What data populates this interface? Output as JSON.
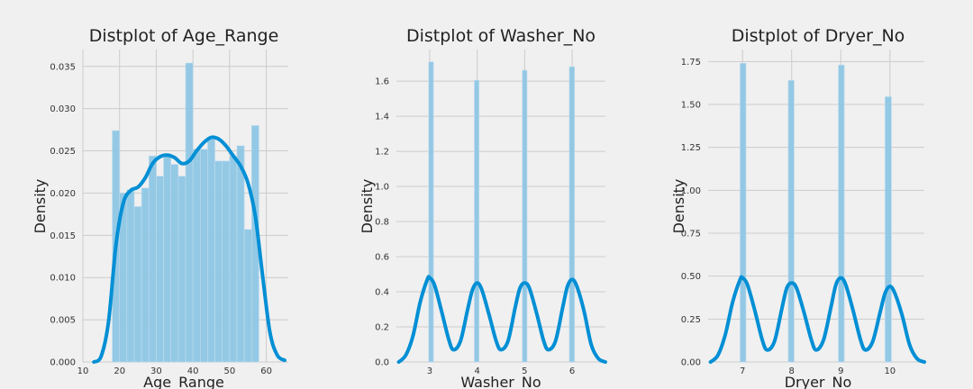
{
  "chart_data": [
    {
      "type": "histogram-kde",
      "title": "Distplot of Age_Range",
      "xlabel": "Age_Range",
      "ylabel": "Density",
      "xlim": [
        10,
        66
      ],
      "ylim": [
        0,
        0.037
      ],
      "xticks": [
        "10",
        "20",
        "30",
        "40",
        "50",
        "60"
      ],
      "yticks": [
        "0.000",
        "0.005",
        "0.010",
        "0.015",
        "0.020",
        "0.025",
        "0.030",
        "0.035"
      ],
      "grid": true,
      "bins": {
        "x0": [
          18,
          20,
          22,
          24,
          26,
          28,
          30,
          32,
          34,
          36,
          38,
          40,
          42,
          44,
          46,
          48,
          50,
          52,
          54,
          56,
          58
        ],
        "x1": [
          20,
          22,
          24,
          26,
          28,
          30,
          32,
          34,
          36,
          38,
          40,
          42,
          44,
          46,
          48,
          50,
          52,
          54,
          56,
          58,
          60
        ],
        "density": [
          0.0274,
          0.02,
          0.0204,
          0.0184,
          0.0206,
          0.0244,
          0.022,
          0.0244,
          0.0234,
          0.022,
          0.0354,
          0.0252,
          0.0252,
          0.0264,
          0.0238,
          0.0238,
          0.0244,
          0.0256,
          0.0157,
          0.028,
          0
        ]
      },
      "kde": {
        "x": [
          13,
          15,
          17,
          19,
          21,
          23,
          25,
          27,
          29,
          31,
          33,
          35,
          37,
          39,
          41,
          43,
          45,
          47,
          49,
          51,
          53,
          55,
          57,
          59,
          61,
          63,
          65
        ],
        "y": [
          0.0,
          0.0007,
          0.0048,
          0.0138,
          0.0188,
          0.0203,
          0.0207,
          0.0218,
          0.0235,
          0.0243,
          0.0245,
          0.0242,
          0.0235,
          0.0238,
          0.025,
          0.026,
          0.0266,
          0.0264,
          0.0256,
          0.0244,
          0.0232,
          0.0212,
          0.0173,
          0.0102,
          0.0035,
          0.0008,
          0.0002
        ]
      },
      "colors": {
        "bar": "#8ec6e4",
        "kde": "#008fd5"
      }
    },
    {
      "type": "histogram-kde",
      "title": "Distplot of Washer_No",
      "xlabel": "Washer_No",
      "ylabel": "Density",
      "xlim": [
        2.3,
        6.7
      ],
      "ylim": [
        0,
        1.78
      ],
      "xticks": [
        "3",
        "4",
        "5",
        "6"
      ],
      "yticks": [
        "0.0",
        "0.2",
        "0.4",
        "0.6",
        "0.8",
        "1.0",
        "1.2",
        "1.4",
        "1.6"
      ],
      "grid": true,
      "bins": {
        "x0": [
          2.98,
          3.94,
          4.95,
          5.94
        ],
        "x1": [
          3.08,
          4.04,
          5.05,
          6.05
        ],
        "density": [
          1.71,
          1.605,
          1.662,
          1.682
        ]
      },
      "kde": {
        "x": [
          2.35,
          2.5,
          2.65,
          2.8,
          2.95,
          3.0,
          3.1,
          3.25,
          3.4,
          3.5,
          3.65,
          3.8,
          3.9,
          4.0,
          4.1,
          4.25,
          4.4,
          4.5,
          4.65,
          4.8,
          4.9,
          5.0,
          5.1,
          5.25,
          5.4,
          5.5,
          5.65,
          5.8,
          5.9,
          6.0,
          6.1,
          6.25,
          6.4,
          6.55,
          6.7
        ],
        "y": [
          0.0,
          0.04,
          0.15,
          0.34,
          0.47,
          0.48,
          0.44,
          0.29,
          0.13,
          0.07,
          0.12,
          0.3,
          0.41,
          0.45,
          0.41,
          0.27,
          0.12,
          0.07,
          0.12,
          0.31,
          0.42,
          0.45,
          0.42,
          0.28,
          0.12,
          0.07,
          0.12,
          0.31,
          0.43,
          0.47,
          0.43,
          0.29,
          0.1,
          0.02,
          0.0
        ]
      },
      "colors": {
        "bar": "#8ec6e4",
        "kde": "#008fd5"
      }
    },
    {
      "type": "histogram-kde",
      "title": "Distplot of Dryer_No",
      "xlabel": "Dryer_No",
      "ylabel": "Density",
      "xlim": [
        6.3,
        10.7
      ],
      "ylim": [
        0,
        1.82
      ],
      "xticks": [
        "7",
        "8",
        "9",
        "10"
      ],
      "yticks": [
        "0.00",
        "0.25",
        "0.50",
        "0.75",
        "1.00",
        "1.25",
        "1.50",
        "1.75"
      ],
      "grid": true,
      "bins": {
        "x0": [
          6.95,
          7.93,
          8.95,
          9.9
        ],
        "x1": [
          7.07,
          8.05,
          9.07,
          10.03
        ],
        "density": [
          1.74,
          1.64,
          1.73,
          1.545
        ]
      },
      "kde": {
        "x": [
          6.35,
          6.5,
          6.65,
          6.8,
          6.95,
          7.0,
          7.1,
          7.25,
          7.4,
          7.5,
          7.65,
          7.8,
          7.9,
          8.0,
          8.1,
          8.25,
          8.4,
          8.5,
          8.65,
          8.8,
          8.9,
          9.0,
          9.1,
          9.25,
          9.4,
          9.5,
          9.65,
          9.8,
          9.9,
          10.0,
          10.1,
          10.25,
          10.4,
          10.55,
          10.7
        ],
        "y": [
          0.0,
          0.04,
          0.16,
          0.35,
          0.48,
          0.49,
          0.45,
          0.3,
          0.13,
          0.07,
          0.12,
          0.31,
          0.43,
          0.46,
          0.43,
          0.29,
          0.13,
          0.07,
          0.13,
          0.32,
          0.45,
          0.49,
          0.45,
          0.3,
          0.13,
          0.07,
          0.12,
          0.29,
          0.4,
          0.44,
          0.4,
          0.27,
          0.1,
          0.02,
          0.0
        ]
      },
      "colors": {
        "bar": "#8ec6e4",
        "kde": "#008fd5"
      }
    }
  ]
}
